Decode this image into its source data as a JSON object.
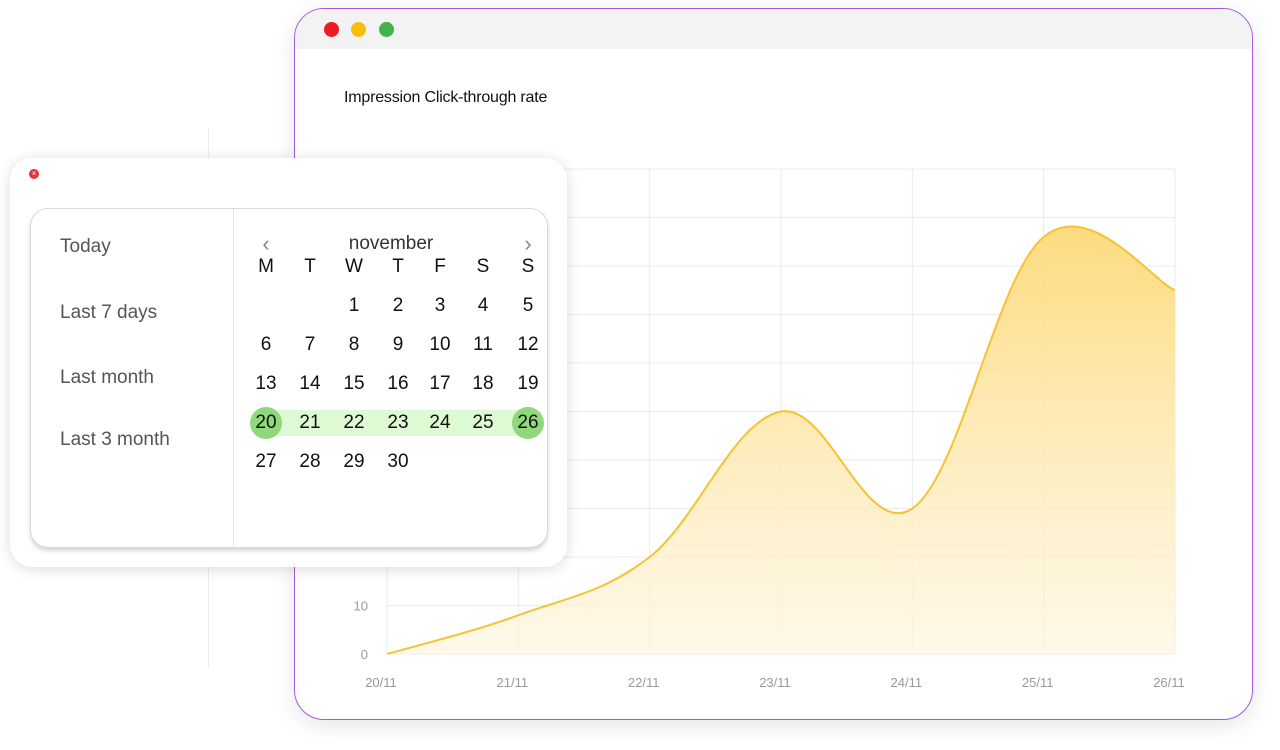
{
  "window": {
    "controls": [
      "close",
      "minimize",
      "maximize"
    ]
  },
  "chart_data": {
    "type": "area",
    "title": "Impression Click-through rate",
    "xlabel": "",
    "ylabel": "",
    "x": [
      "20/11",
      "21/11",
      "22/11",
      "23/11",
      "24/11",
      "25/11",
      "26/11"
    ],
    "values": [
      0,
      8,
      20,
      50,
      30,
      86,
      75
    ],
    "y_ticks_visible": [
      0,
      10
    ],
    "ylim": [
      0,
      100
    ],
    "grid": true,
    "colors": {
      "line": "#f6c232",
      "fill_top": "#fdd978",
      "fill_bottom": "#fff6e0"
    }
  },
  "date_picker": {
    "presets": [
      "Today",
      "Last 7 days",
      "Last month",
      "Last 3 month"
    ],
    "month": "november",
    "weekdays": [
      "M",
      "T",
      "W",
      "T",
      "F",
      "S",
      "S"
    ],
    "first_weekday_offset": 2,
    "days_in_month": 30,
    "range_start": 20,
    "range_end": 26,
    "colors": {
      "range_band": "#ddfad4",
      "range_end": "#8fd97c"
    }
  }
}
